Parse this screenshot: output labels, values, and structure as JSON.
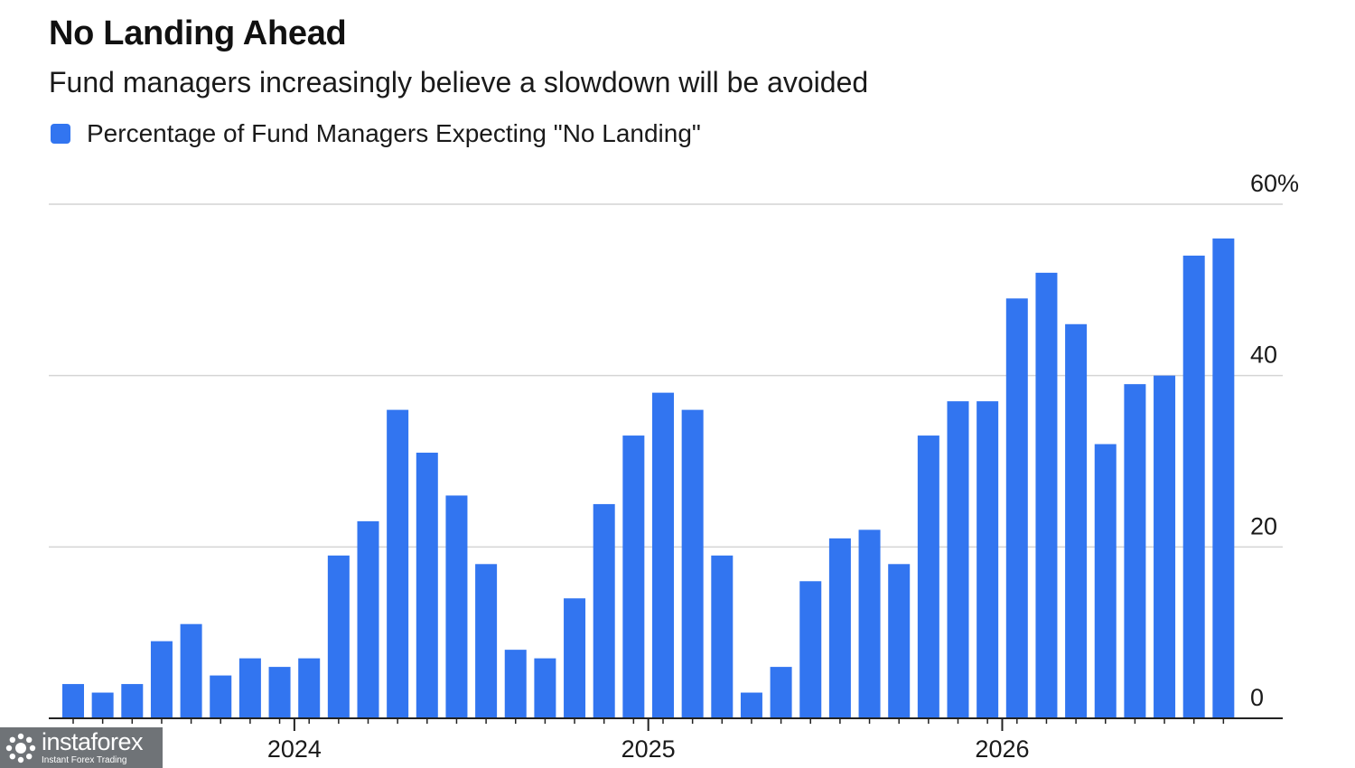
{
  "chart_data": {
    "type": "bar",
    "title": "No Landing Ahead",
    "subtitle": "Fund managers increasingly believe a slowdown will be avoided",
    "xlabel": "",
    "ylabel": "",
    "ylim": [
      0,
      60
    ],
    "y_ticks": [
      0,
      20,
      40,
      60
    ],
    "y_tick_labels": [
      "0",
      "20",
      "40",
      "60%"
    ],
    "y_axis_side": "right",
    "grid": true,
    "legend_position": "top-left",
    "x_year_labels": [
      {
        "label": "2024",
        "after_index": 7
      },
      {
        "label": "2025",
        "after_index": 19
      },
      {
        "label": "2026",
        "after_index": 31
      }
    ],
    "series": [
      {
        "name": "Percentage of Fund Managers Expecting \"No Landing\"",
        "color": "#3275f0",
        "values": [
          4,
          3,
          4,
          9,
          11,
          5,
          7,
          6,
          7,
          19,
          23,
          36,
          31,
          26,
          18,
          8,
          7,
          14,
          25,
          33,
          38,
          36,
          19,
          3,
          6,
          16,
          21,
          22,
          18,
          33,
          37,
          37,
          49,
          52,
          46,
          32,
          39,
          40,
          54,
          56
        ]
      }
    ]
  },
  "watermark": {
    "brand": "instaforex",
    "tagline": "Instant Forex Trading",
    "icon": "instaforex-logo-icon"
  }
}
